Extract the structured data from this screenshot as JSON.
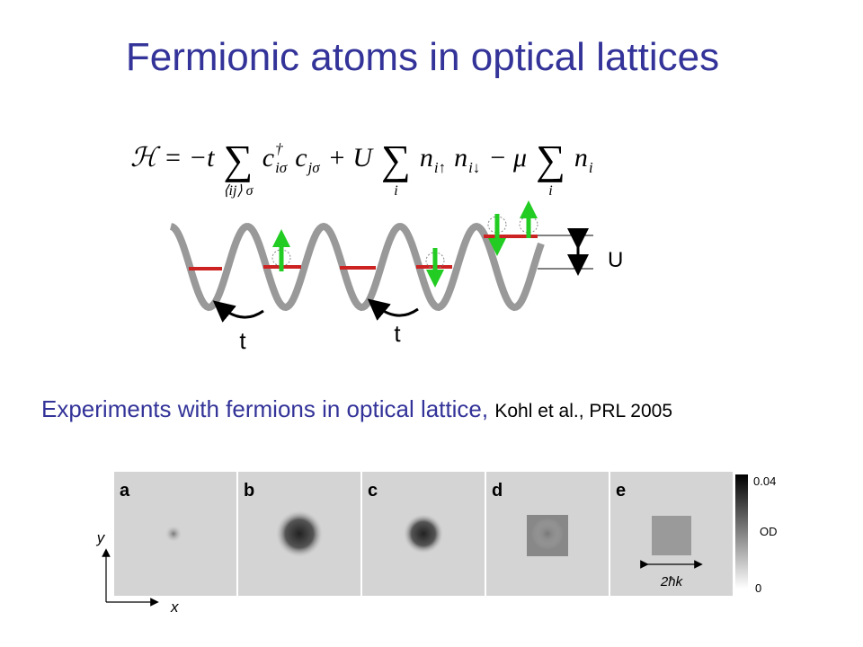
{
  "title": "Fermionic atoms in optical lattices",
  "formula": [
    {
      "text": "ℋ = −t"
    },
    {
      "text": "∑",
      "under": "⟨ij⟩ σ"
    },
    {
      "text": "c",
      "sup": "†",
      "sub": "iσ"
    },
    {
      "text": "c",
      "sub": "jσ"
    },
    {
      "text": "+ U"
    },
    {
      "text": "∑",
      "under": "i"
    },
    {
      "text": "n",
      "sub": "i↑"
    },
    {
      "text": "n",
      "sub": "i↓"
    },
    {
      "text": "− μ"
    },
    {
      "text": "∑",
      "under": "i"
    },
    {
      "text": "n",
      "sub": "i"
    }
  ],
  "diagram": {
    "interaction_label": "U",
    "hopping_labels": [
      "t",
      "t"
    ]
  },
  "caption": {
    "text": "Experiments with fermions in optical lattice,",
    "reference": "Kohl et al., PRL 2005"
  },
  "figure": {
    "panels": [
      "a",
      "b",
      "c",
      "d",
      "e"
    ],
    "colorbar": {
      "max": 0.04,
      "label": "OD",
      "min": 0
    },
    "axes": {
      "y": "y",
      "x": "x"
    },
    "scale_label": "2ħk"
  }
}
